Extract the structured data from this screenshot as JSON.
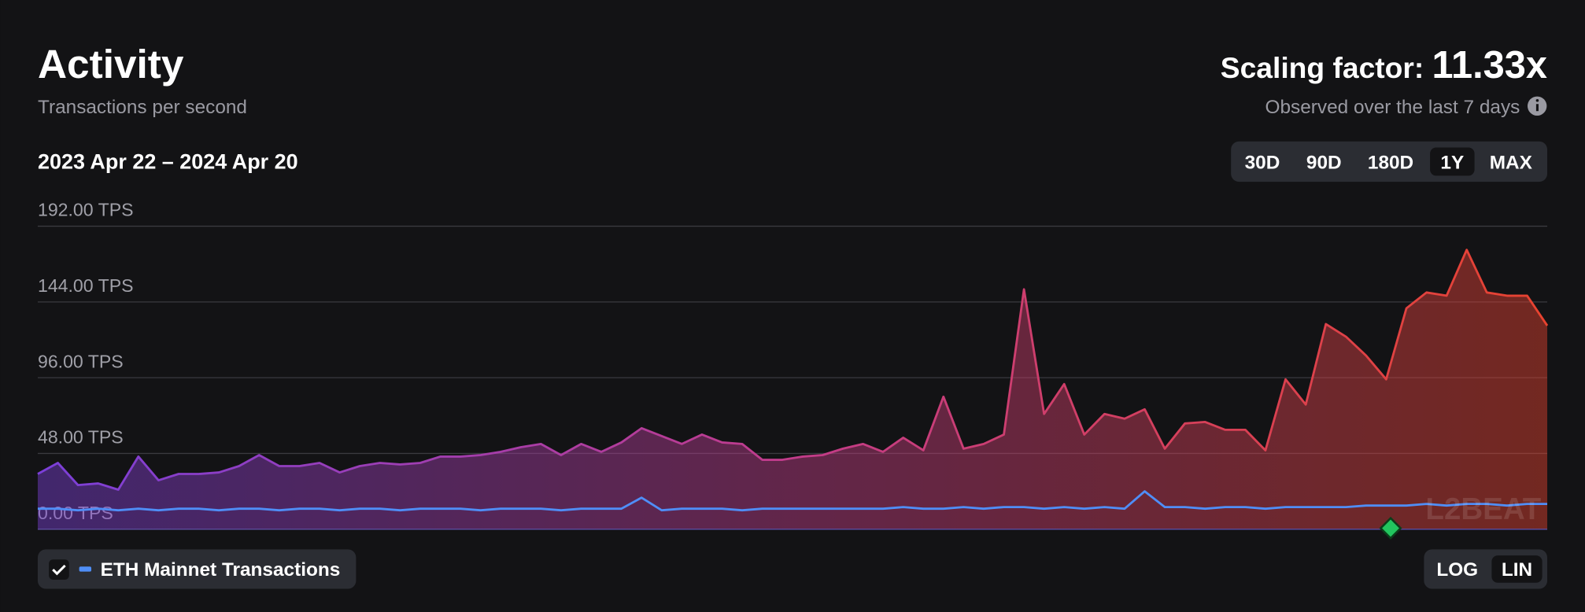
{
  "header": {
    "title": "Activity",
    "subtitle": "Transactions per second",
    "date_range": "2023 Apr 22 – 2024 Apr 20",
    "scaling_label": "Scaling factor:",
    "scaling_value": "11.33x",
    "scaling_note": "Observed over the last 7 days"
  },
  "range_buttons": {
    "options": [
      "30D",
      "90D",
      "180D",
      "1Y",
      "MAX"
    ],
    "active": 3
  },
  "scale_buttons": {
    "options": [
      "LOG",
      "LIN"
    ],
    "active": 1
  },
  "chart_data": {
    "type": "area",
    "log_scale": false,
    "grid": true,
    "watermark": "L2BEAT",
    "ylim": [
      0,
      192
    ],
    "yticks": [
      {
        "value": 0,
        "label": "0.00 TPS"
      },
      {
        "value": 48,
        "label": "48.00 TPS"
      },
      {
        "value": 96,
        "label": "96.00 TPS"
      },
      {
        "value": 144,
        "label": "144.00 TPS"
      },
      {
        "value": 192,
        "label": "192.00 TPS"
      }
    ],
    "series": [
      {
        "gradient": [
          "#7b3fd9",
          "#c23c8a",
          "#e8432f"
        ],
        "values": [
          35,
          42,
          28,
          29,
          25,
          46,
          31,
          35,
          35,
          36,
          40,
          47,
          40,
          40,
          42,
          36,
          40,
          42,
          41,
          42,
          46,
          46,
          47,
          49,
          52,
          54,
          47,
          54,
          49,
          55,
          64,
          59,
          54,
          60,
          55,
          54,
          44,
          44,
          46,
          47,
          51,
          54,
          49,
          58,
          50,
          84,
          51,
          54,
          60,
          152,
          73,
          92,
          60,
          73,
          70,
          76,
          51,
          67,
          68,
          63,
          63,
          50,
          95,
          79,
          130,
          122,
          110,
          95,
          140,
          150,
          148,
          177,
          150,
          148,
          148,
          129
        ]
      },
      {
        "name": "ETH Mainnet Transactions",
        "color": "#4f8ef7",
        "values": [
          13,
          13,
          12,
          13,
          12,
          13,
          12,
          13,
          13,
          12,
          13,
          13,
          12,
          13,
          13,
          12,
          13,
          13,
          12,
          13,
          13,
          13,
          12,
          13,
          13,
          13,
          12,
          13,
          13,
          13,
          20,
          12,
          13,
          13,
          13,
          12,
          13,
          13,
          13,
          13,
          13,
          13,
          13,
          14,
          13,
          13,
          14,
          13,
          14,
          14,
          13,
          14,
          13,
          14,
          13,
          24,
          14,
          14,
          13,
          14,
          14,
          13,
          14,
          14,
          14,
          14,
          15,
          15,
          15,
          16,
          15,
          16,
          16,
          15,
          16,
          16
        ]
      }
    ]
  }
}
